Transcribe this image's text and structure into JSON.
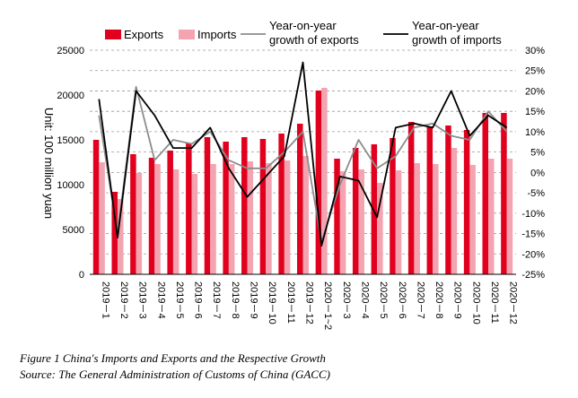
{
  "chart_data": {
    "type": "bar",
    "title": "Figure 1 China's Imports and Exports and the Respective Growth",
    "source": "Source: The General Administration of Customs of China (GACC)",
    "ylabel": "Unit: 100 million yuan",
    "xlabel": "",
    "ylim": [
      0,
      25000
    ],
    "yticks": [
      "0",
      "5000",
      "10000",
      "15000",
      "20000",
      "25000"
    ],
    "y2lim": [
      -25,
      30
    ],
    "y2ticks": [
      "-25%",
      "-20%",
      "-15%",
      "-10%",
      "-5%",
      "0%",
      "5%",
      "10%",
      "15%",
      "20%",
      "25%",
      "30%"
    ],
    "categories": [
      "2019－1",
      "2019－2",
      "2019－3",
      "2019－4",
      "2019－5",
      "2019－6",
      "2019－7",
      "2019－8",
      "2019－9",
      "2019－10",
      "2019－11",
      "2019－12",
      "2020－1~2",
      "2020－3",
      "2020－4",
      "2020－5",
      "2020－6",
      "2020－7",
      "2020－8",
      "2020－9",
      "2020－10",
      "2020－11",
      "2020－12"
    ],
    "series": [
      {
        "name": "Exports",
        "kind": "bar",
        "axis": "left",
        "color": "#e1001e",
        "values": [
          15000,
          9200,
          13400,
          13000,
          13800,
          14600,
          15300,
          14800,
          15300,
          15100,
          15700,
          16800,
          20500,
          12900,
          14100,
          14500,
          15200,
          17000,
          16500,
          16600,
          16100,
          18000,
          18000
        ]
      },
      {
        "name": "Imports",
        "kind": "bar",
        "axis": "left",
        "color": "#f4a3b0",
        "values": [
          12500,
          8400,
          11300,
          12300,
          11700,
          11200,
          12300,
          12300,
          12600,
          12400,
          12700,
          13200,
          20800,
          11500,
          11700,
          10200,
          11600,
          12400,
          12300,
          14100,
          12200,
          12900,
          12900
        ]
      },
      {
        "name": "Year-on-year growth of exports",
        "kind": "line",
        "axis": "right",
        "color": "#8c8c8c",
        "values": [
          14,
          -15,
          21,
          3,
          8,
          7,
          10,
          3,
          1,
          1,
          5,
          10,
          -17,
          -3,
          8,
          1,
          4,
          11,
          12,
          9,
          8,
          15,
          10
        ]
      },
      {
        "name": "Year-on-year growth of imports",
        "kind": "line",
        "axis": "right",
        "color": "#000000",
        "values": [
          18,
          -16,
          20,
          14,
          6,
          6,
          11,
          1,
          -6,
          -1,
          4,
          27,
          -18,
          -1,
          -2,
          -11,
          11,
          12,
          11,
          20,
          9,
          14,
          11
        ]
      }
    ],
    "legend": {
      "exports": "Exports",
      "imports": "Imports",
      "exports_growth": [
        "Year-on-year",
        "growth of exports"
      ],
      "imports_growth": [
        "Year-on-year",
        "growth of imports"
      ]
    },
    "grid": "dashed-horizontal"
  }
}
